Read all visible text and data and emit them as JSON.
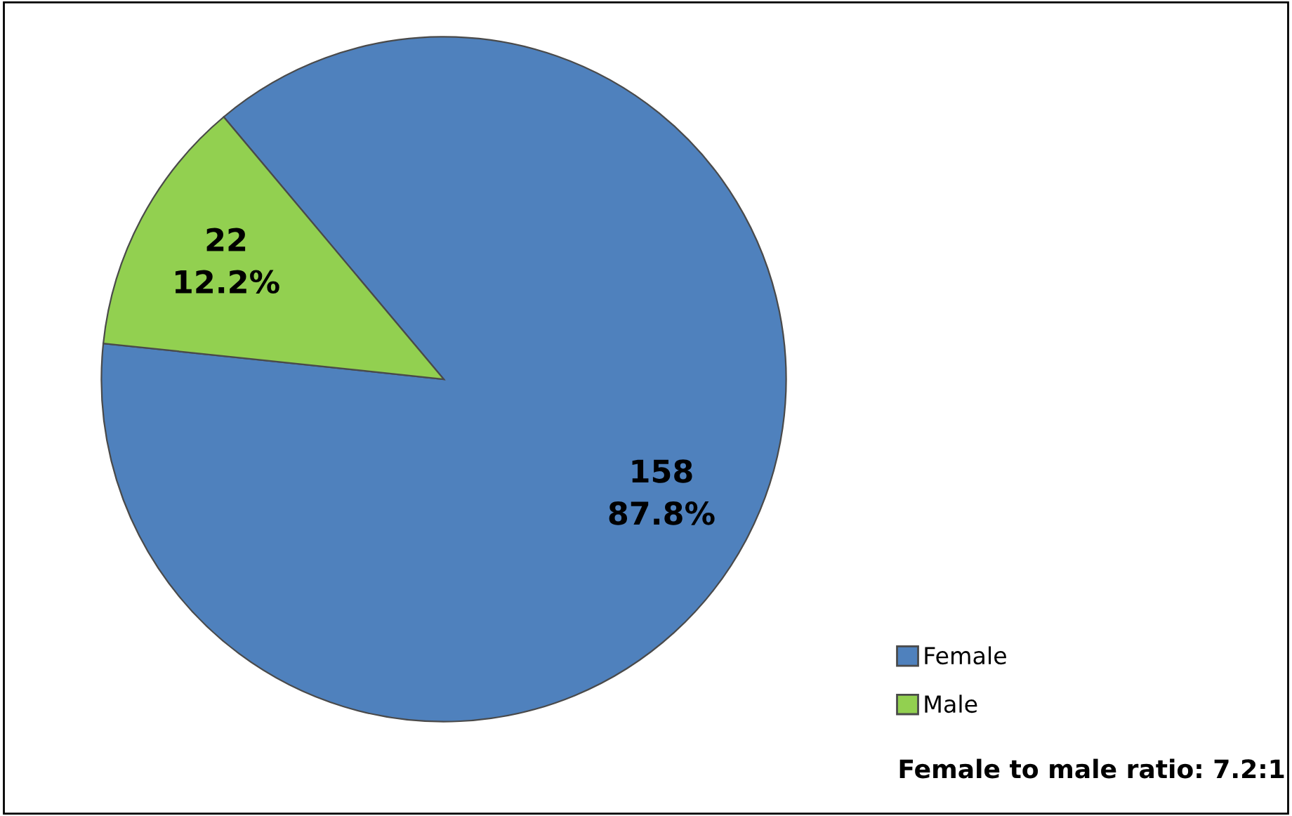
{
  "chart_data": {
    "type": "pie",
    "categories": [
      "Female",
      "Male"
    ],
    "values": [
      158,
      22
    ],
    "colors": [
      "#4f81bd",
      "#92d050"
    ],
    "value_labels": [
      "158\n87.8%",
      "22\n12.2%"
    ],
    "legend": "bottom right",
    "annotations": [
      "Female to male ratio: 7.2:1"
    ]
  }
}
